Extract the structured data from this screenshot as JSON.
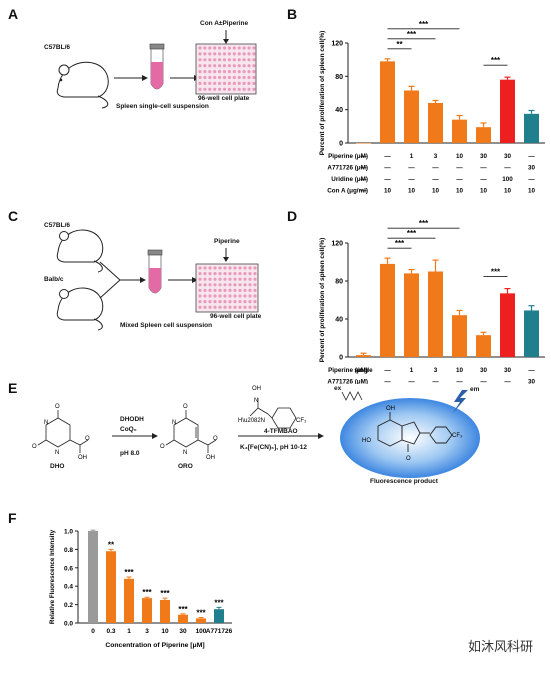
{
  "panels": {
    "A": {
      "letter": "A",
      "mouse_strain": "C57BL/6",
      "treatment": "Con A±Piperine",
      "plate_label": "96-well cell plate",
      "caption": "Spleen single-cell suspension"
    },
    "C": {
      "letter": "C",
      "mouse_strain_1": "C57BL/6",
      "mouse_strain_2": "Balb/c",
      "treatment": "Piperine",
      "plate_label": "96-well cell plate",
      "caption": "Mixed Spleen cell suspension"
    },
    "E": {
      "letter": "E",
      "enzyme": "DHODH",
      "cofactor": "CoQ₀",
      "ph1": "pH 8.0",
      "substrate": "DHO",
      "product": "ORO",
      "reagent": "4-TFMBAO",
      "reagent_cond": "K₃[Fe(CN)₆], pH 10-12",
      "excitation": "ex",
      "emission": "em",
      "fluor_label": "Fluorescence product",
      "cf3": "CF₃"
    },
    "B_letter": "B",
    "D_letter": "D",
    "F_letter": "F"
  },
  "chart_data": [
    {
      "id": "B",
      "type": "bar",
      "ylabel": "Percent of proliferation of spleen cell(%)",
      "ylim": [
        0,
        120
      ],
      "yticks": [
        0,
        40,
        80,
        120
      ],
      "values": [
        0,
        98,
        63,
        48,
        28,
        19,
        76,
        35
      ],
      "errors": [
        0,
        3,
        5,
        3,
        5,
        5,
        3,
        4
      ],
      "colors": [
        "#f07a1a",
        "#f07a1a",
        "#f07a1a",
        "#f07a1a",
        "#f07a1a",
        "#f07a1a",
        "#ee1f1f",
        "#1f7f8c"
      ],
      "significance": [
        {
          "from": 1,
          "to": 2,
          "label": "**"
        },
        {
          "from": 1,
          "to": 3,
          "label": "***"
        },
        {
          "from": 1,
          "to": 4,
          "label": "***"
        },
        {
          "from": 5,
          "to": 6,
          "label": "***"
        }
      ],
      "table_rows": [
        {
          "label": "Piperine (μM)",
          "cells": [
            "—",
            "—",
            "1",
            "3",
            "10",
            "30",
            "30",
            "—"
          ]
        },
        {
          "label": "A771726 (μM)",
          "cells": [
            "—",
            "—",
            "—",
            "—",
            "—",
            "—",
            "—",
            "30"
          ]
        },
        {
          "label": "Uridine (μM)",
          "cells": [
            "—",
            "—",
            "—",
            "—",
            "—",
            "—",
            "100",
            "—"
          ]
        },
        {
          "label": "Con A (μg/ml)",
          "cells": [
            "—",
            "10",
            "10",
            "10",
            "10",
            "10",
            "10",
            "10"
          ]
        }
      ]
    },
    {
      "id": "D",
      "type": "bar",
      "ylabel": "Percent of proliferation of spleen cell(%)",
      "ylim": [
        0,
        120
      ],
      "yticks": [
        0,
        40,
        80,
        120
      ],
      "values": [
        2,
        98,
        88,
        90,
        44,
        23,
        67,
        49
      ],
      "errors": [
        2,
        6,
        4,
        12,
        5,
        3,
        5,
        5
      ],
      "colors": [
        "#f07a1a",
        "#f07a1a",
        "#f07a1a",
        "#f07a1a",
        "#f07a1a",
        "#f07a1a",
        "#ee1f1f",
        "#1f7f8c"
      ],
      "significance": [
        {
          "from": 1,
          "to": 2,
          "label": "***"
        },
        {
          "from": 1,
          "to": 3,
          "label": "***"
        },
        {
          "from": 1,
          "to": 4,
          "label": "***"
        },
        {
          "from": 5,
          "to": 6,
          "label": "***"
        }
      ],
      "table_rows": [
        {
          "label": "Piperine (μM)",
          "cells": [
            "single",
            "—",
            "1",
            "3",
            "10",
            "30",
            "30",
            "—"
          ]
        },
        {
          "label": "A771726 (μM)",
          "cells": [
            "",
            "—",
            "—",
            "—",
            "—",
            "—",
            "—",
            "30"
          ]
        },
        {
          "label": "Uridine (μM)",
          "cells": [
            "",
            "—",
            "—",
            "—",
            "—",
            "—",
            "100",
            "—"
          ]
        }
      ]
    },
    {
      "id": "F",
      "type": "bar",
      "ylabel": "Relative Fluorescence Intensity",
      "xlabel": "Concentration of Piperine [μM]",
      "categories": [
        "0",
        "0.3",
        "1",
        "3",
        "10",
        "30",
        "100",
        "A771726"
      ],
      "ylim": [
        0,
        1.0
      ],
      "yticks": [
        0.0,
        0.2,
        0.4,
        0.6,
        0.8,
        1.0
      ],
      "ytick_labels": [
        "0.0",
        "0.2",
        "0.4",
        "0.6",
        "0.8",
        "1.0"
      ],
      "values": [
        1.0,
        0.78,
        0.48,
        0.27,
        0.25,
        0.09,
        0.05,
        0.15
      ],
      "errors": [
        0.01,
        0.02,
        0.02,
        0.01,
        0.02,
        0.01,
        0.01,
        0.02
      ],
      "colors": [
        "#9a9a9a",
        "#f07a1a",
        "#f07a1a",
        "#f07a1a",
        "#f07a1a",
        "#f07a1a",
        "#f07a1a",
        "#1f7f8c"
      ],
      "bar_labels": [
        "",
        "**",
        "***",
        "***",
        "***",
        "***",
        "***",
        "***"
      ]
    }
  ],
  "watermark": "如沐风科研"
}
